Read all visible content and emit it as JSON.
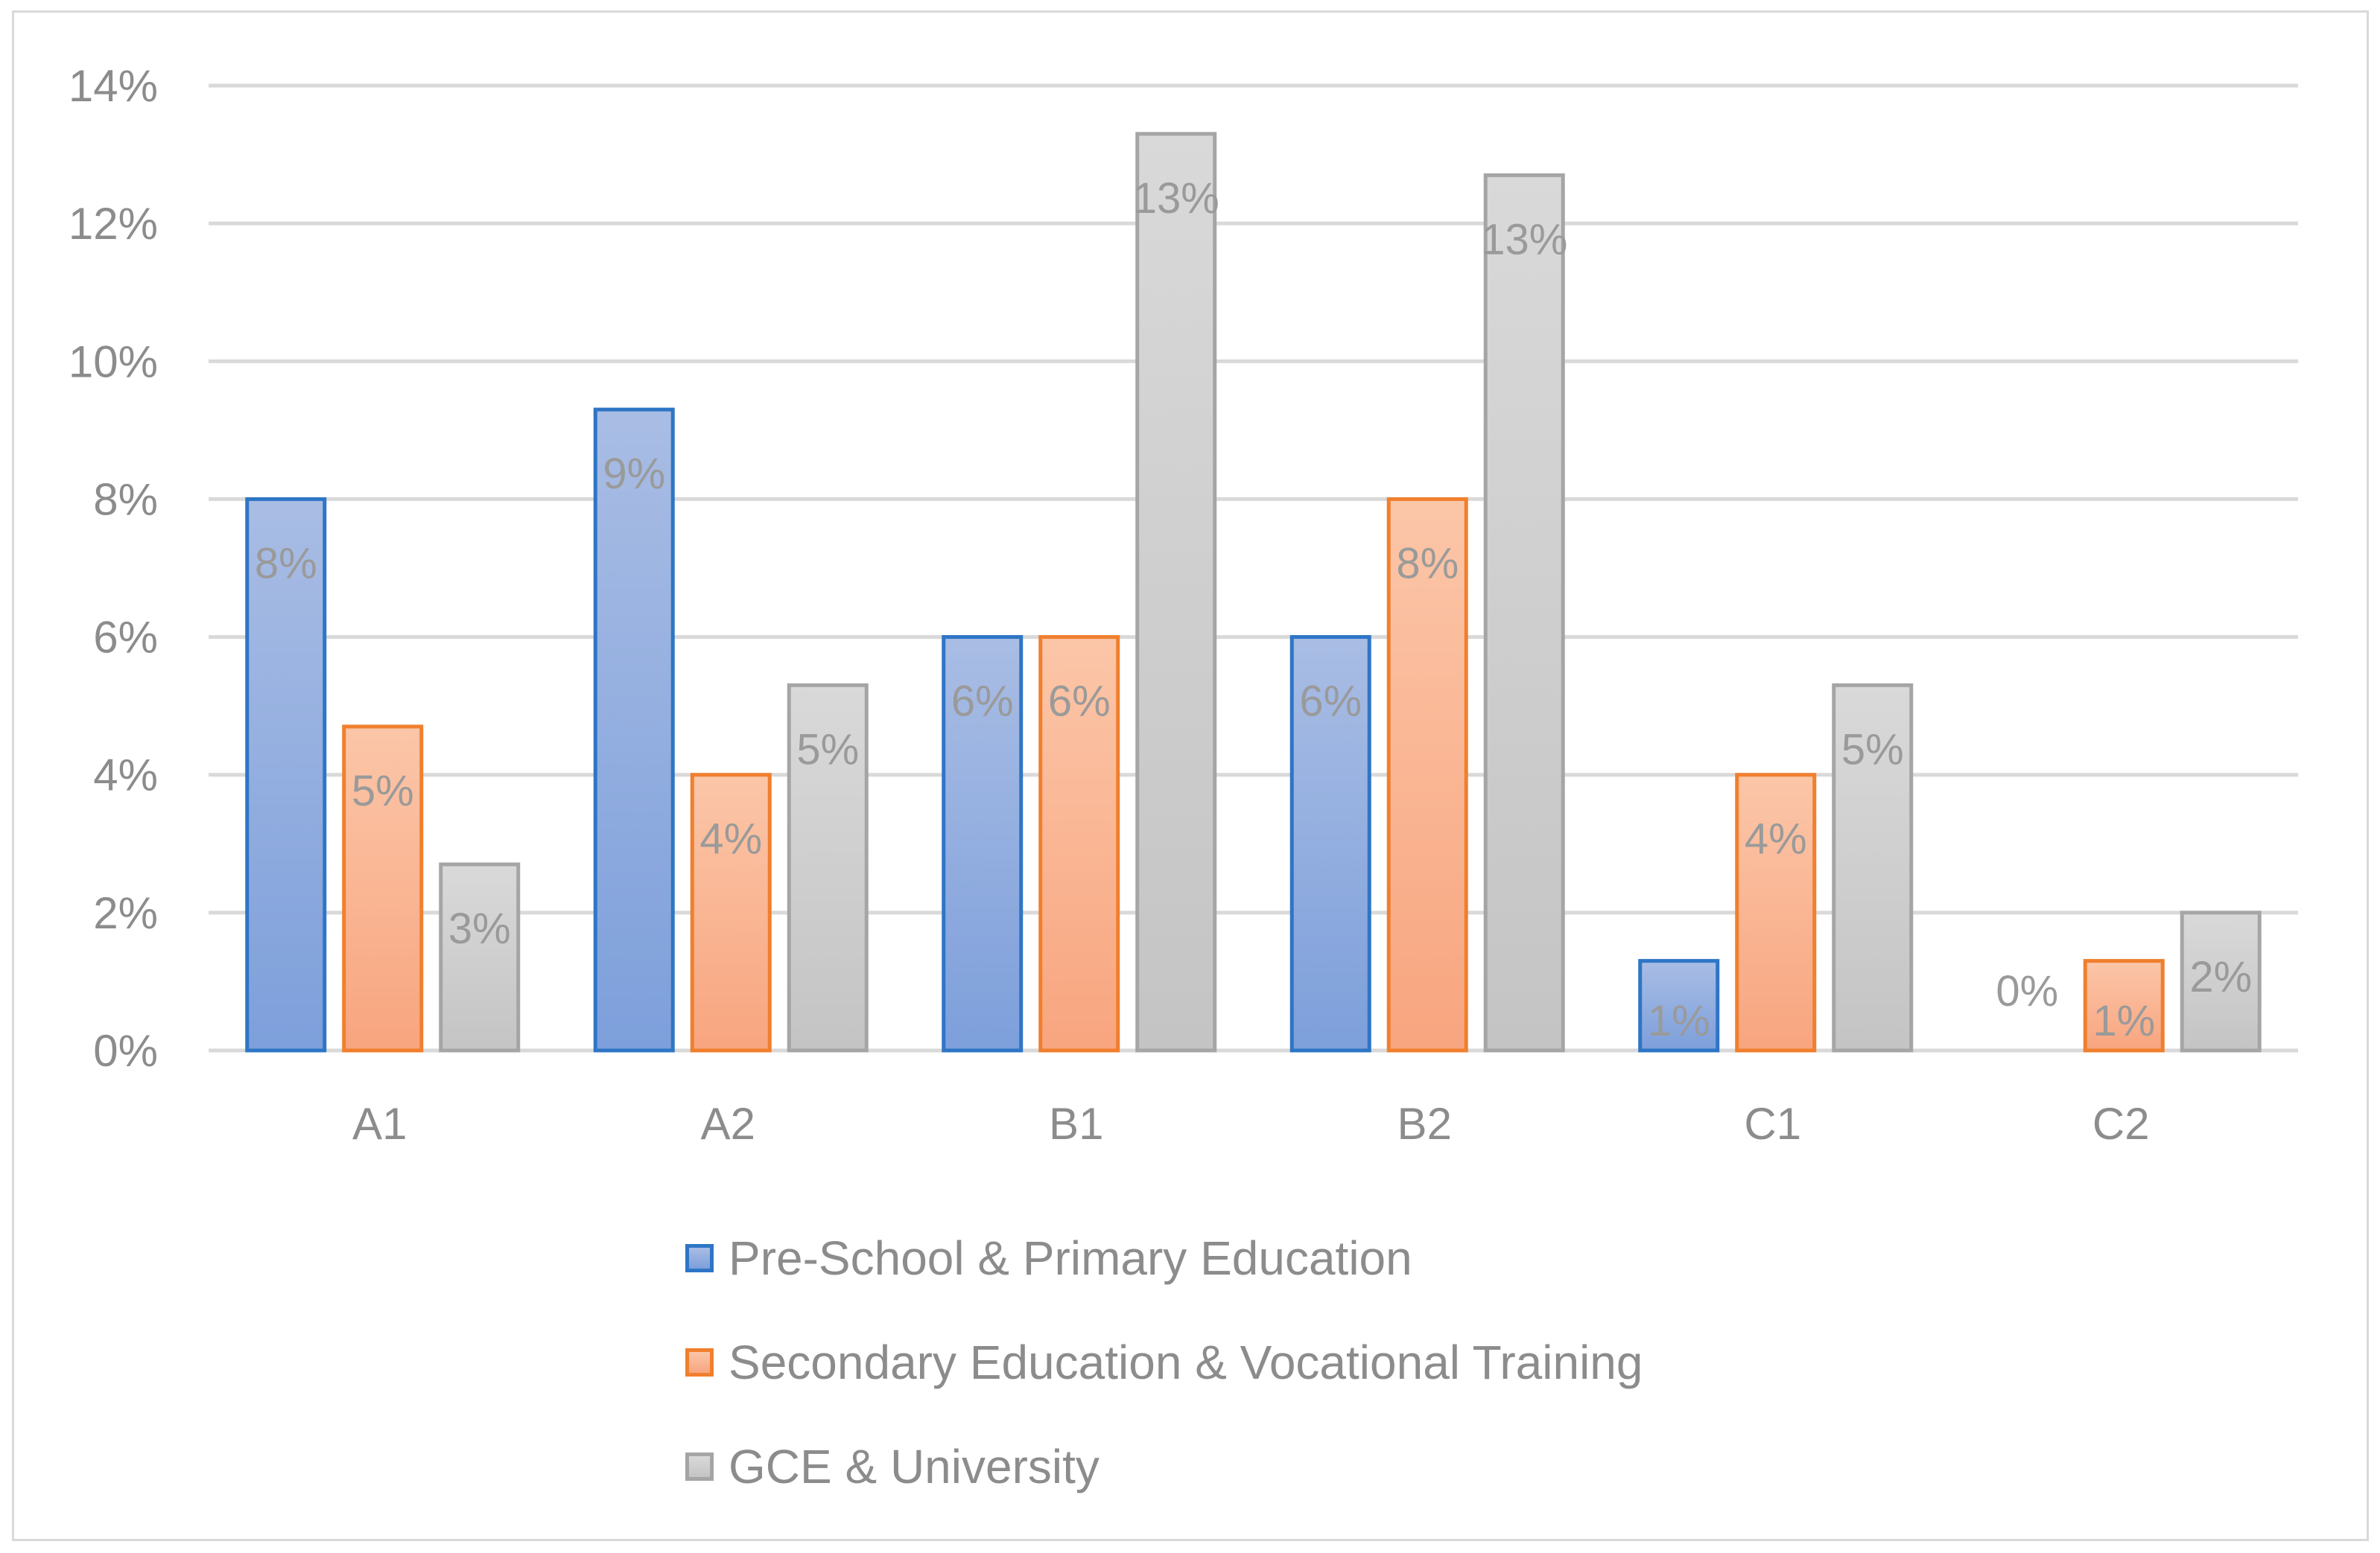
{
  "chart_data": {
    "type": "bar",
    "title": "",
    "xlabel": "",
    "ylabel": "",
    "ylim": [
      0,
      14
    ],
    "yticks": [
      "0%",
      "2%",
      "4%",
      "6%",
      "8%",
      "10%",
      "12%",
      "14%"
    ],
    "grid": true,
    "legend_position": "bottom",
    "categories": [
      "A1",
      "A2",
      "B1",
      "B2",
      "C1",
      "C2"
    ],
    "series": [
      {
        "name": "Pre-School & Primary Education",
        "values": [
          8.0,
          9.3,
          6.0,
          6.0,
          1.3,
          0
        ],
        "labels": [
          "8%",
          "9%",
          "6%",
          "6%",
          "1%",
          "0%"
        ],
        "fill_top": "#a9bde4",
        "fill_bottom": "#7d9fdb",
        "stroke": "#2e75c6"
      },
      {
        "name": "Secondary Education & Vocational Training",
        "values": [
          4.7,
          4.0,
          6.0,
          8.0,
          4.0,
          1.3
        ],
        "labels": [
          "5%",
          "4%",
          "6%",
          "8%",
          "4%",
          "1%"
        ],
        "fill_top": "#fbc6a8",
        "fill_bottom": "#f8a57f",
        "stroke": "#f07f2e"
      },
      {
        "name": "GCE & University",
        "values": [
          2.7,
          5.3,
          13.3,
          12.7,
          5.3,
          2.0
        ],
        "labels": [
          "3%",
          "5%",
          "13%",
          "13%",
          "5%",
          "2%"
        ],
        "fill_top": "#d9d9d9",
        "fill_bottom": "#c4c4c4",
        "stroke": "#a5a5a5"
      }
    ]
  }
}
